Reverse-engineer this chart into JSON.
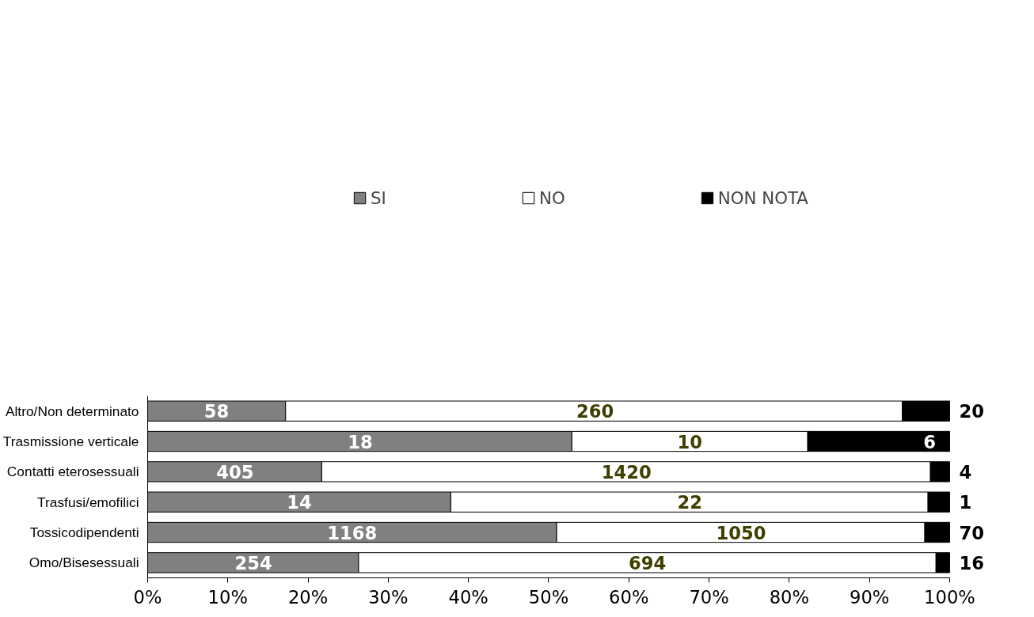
{
  "chart_data": {
    "type": "bar",
    "orientation": "horizontal",
    "stacked": true,
    "categories": [
      "Altro/Non determinato",
      "Trasmissione verticale",
      "Contatti eterosessuali",
      "Trasfusi/emofilici",
      "Tossicodipendenti",
      "Omo/Bisesessuali"
    ],
    "series": [
      {
        "name": "SI",
        "color": "#808080",
        "values": [
          17.2,
          52.9,
          21.7,
          37.8,
          51.0,
          26.3
        ]
      },
      {
        "name": "NO",
        "color": "#ffffff",
        "values": [
          76.9,
          29.4,
          75.9,
          59.5,
          45.9,
          72.0
        ]
      },
      {
        "name": "NON NOTA",
        "color": "#000000",
        "values": [
          5.9,
          17.7,
          2.4,
          2.7,
          3.1,
          1.7
        ]
      }
    ],
    "annotations": [
      {
        "text": "58",
        "x": 8.6,
        "y": "Altro/Non determinato"
      },
      {
        "text": "260",
        "x": 55.8,
        "y": "Altro/Non determinato"
      },
      {
        "text": "20",
        "x": 100,
        "y": "Altro/Non determinato"
      },
      {
        "text": "18",
        "x": 26.5,
        "y": "Trasmissione verticale"
      },
      {
        "text": "10",
        "x": 67.6,
        "y": "Trasmissione verticale"
      },
      {
        "text": "6",
        "x": 97.5,
        "y": "Trasmissione verticale"
      },
      {
        "text": "405",
        "x": 10.9,
        "y": "Contatti eterosessuali"
      },
      {
        "text": "1420",
        "x": 59.7,
        "y": "Contatti eterosessuali"
      },
      {
        "text": "4",
        "x": 100,
        "y": "Contatti eterosessuali"
      },
      {
        "text": "14",
        "x": 18.9,
        "y": "Trasfusi/emofilici"
      },
      {
        "text": "22",
        "x": 67.6,
        "y": "Trasfusi/emofilici"
      },
      {
        "text": "1",
        "x": 100,
        "y": "Trasfusi/emofilici"
      },
      {
        "text": "1168",
        "x": 25.5,
        "y": "Tossicodipendenti"
      },
      {
        "text": "1050",
        "x": 74.0,
        "y": "Tossicodipendenti"
      },
      {
        "text": "70",
        "x": 100,
        "y": "Tossicodipendenti"
      },
      {
        "text": "254",
        "x": 13.2,
        "y": "Omo/Bisesessuali"
      },
      {
        "text": "694",
        "x": 62.3,
        "y": "Omo/Bisesessuali"
      },
      {
        "text": "16",
        "x": 100,
        "y": "Omo/Bisesessuali"
      }
    ],
    "xlim": [
      0,
      100
    ],
    "xticks": [
      {
        "value": 0,
        "label": "0%"
      },
      {
        "value": 10,
        "label": "10%"
      },
      {
        "value": 20,
        "label": "20%"
      },
      {
        "value": 30,
        "label": "30%"
      },
      {
        "value": 40,
        "label": "40%"
      },
      {
        "value": 50,
        "label": "50%"
      },
      {
        "value": 60,
        "label": "60%"
      },
      {
        "value": 70,
        "label": "70%"
      },
      {
        "value": 80,
        "label": "80%"
      },
      {
        "value": 90,
        "label": "90%"
      },
      {
        "value": 100,
        "label": "100%"
      }
    ],
    "grid": false,
    "legend": "top"
  }
}
